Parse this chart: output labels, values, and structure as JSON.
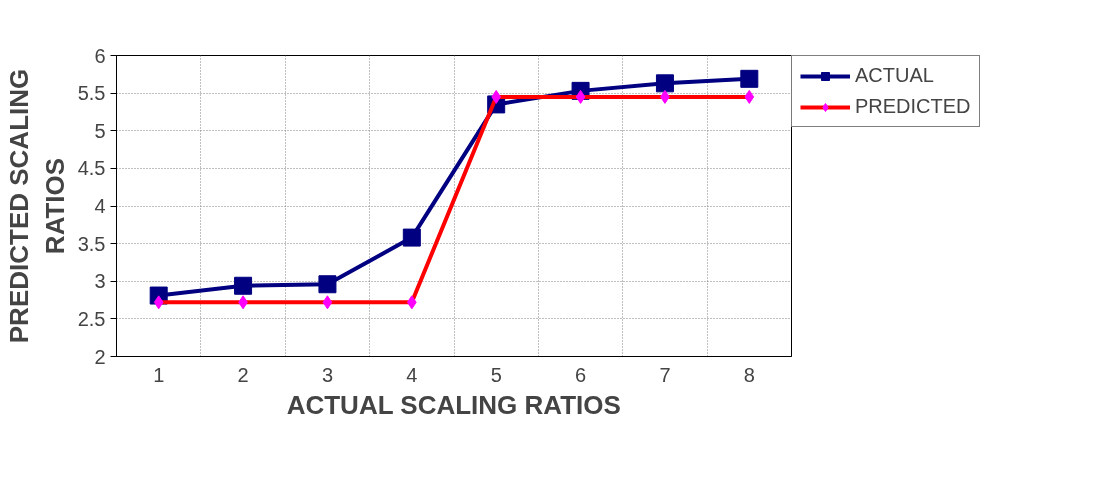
{
  "chart_data": {
    "type": "line",
    "xlabel": "ACTUAL SCALING RATIOS",
    "ylabel": "PREDICTED SCALING RATIOS",
    "categories": [
      "1",
      "2",
      "3",
      "4",
      "5",
      "6",
      "7",
      "8"
    ],
    "series": [
      {
        "name": "ACTUAL",
        "color": "#000080",
        "marker": "square",
        "values": [
          2.81,
          2.94,
          2.96,
          3.58,
          5.35,
          5.53,
          5.63,
          5.69
        ]
      },
      {
        "name": "PREDICTED",
        "color": "#ff0000",
        "marker": "diamond",
        "colors": [
          "#ff00ff",
          "#ff00ff",
          "#ff00ff",
          "#ff00ff",
          "#ff00ff",
          "#ff00ff",
          "#ff00ff",
          "#ff00ff"
        ],
        "values": [
          2.72,
          2.72,
          2.72,
          2.72,
          5.45,
          5.45,
          5.45,
          5.45
        ]
      }
    ],
    "ylim": [
      2,
      6
    ],
    "yticks": [
      2,
      2.5,
      3,
      3.5,
      4,
      4.5,
      5,
      5.5,
      6
    ],
    "grid": true,
    "legend": "top right"
  }
}
